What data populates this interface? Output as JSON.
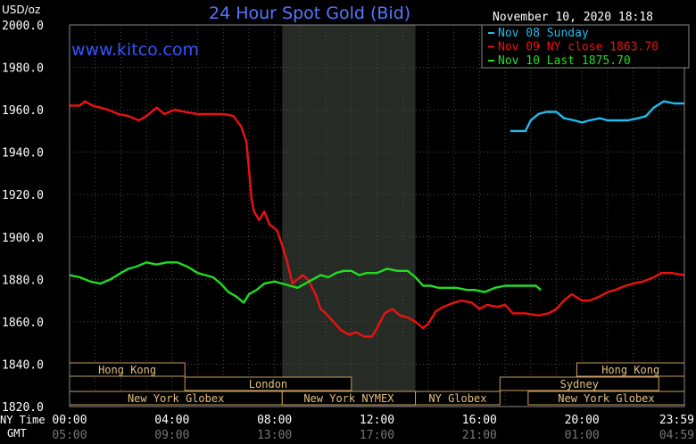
{
  "chart_data": {
    "type": "line",
    "title": "24 Hour Spot Gold (Bid)",
    "unit_label": "USD/oz",
    "watermark": "www.kitco.com",
    "timestamp": "November 10, 2020 18:18",
    "ylim": [
      1820,
      2000
    ],
    "y_ticks": [
      "2000.0",
      "1980.0",
      "1960.0",
      "1940.0",
      "1920.0",
      "1900.0",
      "1880.0",
      "1860.0",
      "1840.0",
      "1820.0"
    ],
    "xlim": [
      0,
      24
    ],
    "ny_time_label": "NY Time",
    "gmt_label": "GMT",
    "x_ticks_ny": [
      "00:00",
      "04:00",
      "08:00",
      "12:00",
      "16:00",
      "20:00",
      "23:59"
    ],
    "x_ticks_gmt": [
      "05:00",
      "09:00",
      "13:00",
      "17:00",
      "21:00",
      "01:00",
      "04:59"
    ],
    "grid": true,
    "legend_position": "top-right",
    "shaded_region": {
      "from_hour": 8.3,
      "to_hour": 13.5
    },
    "series": [
      {
        "name": "Nov 08 Sunday",
        "color": "#22bbee",
        "points": [
          [
            17.2,
            1950
          ],
          [
            17.8,
            1950
          ],
          [
            18.0,
            1955
          ],
          [
            18.3,
            1958
          ],
          [
            18.6,
            1959
          ],
          [
            19.0,
            1959
          ],
          [
            19.3,
            1956
          ],
          [
            19.7,
            1955
          ],
          [
            20.0,
            1954
          ],
          [
            20.3,
            1955
          ],
          [
            20.7,
            1956
          ],
          [
            21.0,
            1955
          ],
          [
            21.4,
            1955
          ],
          [
            21.8,
            1955
          ],
          [
            22.2,
            1956
          ],
          [
            22.5,
            1957
          ],
          [
            22.8,
            1961
          ],
          [
            23.2,
            1964
          ],
          [
            23.6,
            1963
          ],
          [
            23.99,
            1963
          ]
        ]
      },
      {
        "name": "Nov 09 NY close 1863.70",
        "color": "#ee1111",
        "points": [
          [
            0,
            1962
          ],
          [
            0.4,
            1962
          ],
          [
            0.6,
            1964
          ],
          [
            0.9,
            1962
          ],
          [
            1.2,
            1961
          ],
          [
            1.5,
            1960
          ],
          [
            1.9,
            1958
          ],
          [
            2.3,
            1957
          ],
          [
            2.7,
            1955
          ],
          [
            3.0,
            1957
          ],
          [
            3.4,
            1961
          ],
          [
            3.7,
            1958
          ],
          [
            4.1,
            1960
          ],
          [
            4.5,
            1959
          ],
          [
            5.0,
            1958
          ],
          [
            5.5,
            1958
          ],
          [
            6.0,
            1958
          ],
          [
            6.4,
            1957
          ],
          [
            6.7,
            1952
          ],
          [
            6.9,
            1945
          ],
          [
            7.0,
            1932
          ],
          [
            7.1,
            1918
          ],
          [
            7.2,
            1912
          ],
          [
            7.4,
            1908
          ],
          [
            7.6,
            1912
          ],
          [
            7.8,
            1906
          ],
          [
            8.1,
            1903
          ],
          [
            8.3,
            1896
          ],
          [
            8.5,
            1888
          ],
          [
            8.7,
            1878
          ],
          [
            8.9,
            1880
          ],
          [
            9.1,
            1882
          ],
          [
            9.3,
            1880
          ],
          [
            9.6,
            1873
          ],
          [
            9.8,
            1866
          ],
          [
            10.0,
            1864
          ],
          [
            10.3,
            1860
          ],
          [
            10.6,
            1856
          ],
          [
            10.9,
            1854
          ],
          [
            11.2,
            1855
          ],
          [
            11.5,
            1853
          ],
          [
            11.8,
            1853
          ],
          [
            12.0,
            1857
          ],
          [
            12.3,
            1864
          ],
          [
            12.6,
            1866
          ],
          [
            12.9,
            1863
          ],
          [
            13.2,
            1862
          ],
          [
            13.5,
            1860
          ],
          [
            13.8,
            1857
          ],
          [
            14.0,
            1859
          ],
          [
            14.3,
            1865
          ],
          [
            14.6,
            1867
          ],
          [
            15.0,
            1869
          ],
          [
            15.3,
            1870
          ],
          [
            15.7,
            1869
          ],
          [
            16.0,
            1866
          ],
          [
            16.3,
            1868
          ],
          [
            16.7,
            1867
          ],
          [
            17.0,
            1868
          ],
          [
            17.3,
            1864
          ],
          [
            17.8,
            1864
          ],
          [
            18.3,
            1863
          ],
          [
            18.7,
            1864
          ],
          [
            19.0,
            1866
          ],
          [
            19.3,
            1870
          ],
          [
            19.6,
            1873
          ],
          [
            20.0,
            1870
          ],
          [
            20.3,
            1870
          ],
          [
            20.7,
            1872
          ],
          [
            21.0,
            1874
          ],
          [
            21.3,
            1875
          ],
          [
            21.7,
            1877
          ],
          [
            22.0,
            1878
          ],
          [
            22.4,
            1879
          ],
          [
            22.8,
            1881
          ],
          [
            23.1,
            1883
          ],
          [
            23.5,
            1883
          ],
          [
            23.99,
            1882
          ]
        ]
      },
      {
        "name": "Nov 10 Last 1875.70",
        "color": "#22dd22",
        "points": [
          [
            0,
            1882
          ],
          [
            0.4,
            1881
          ],
          [
            0.8,
            1879
          ],
          [
            1.2,
            1878
          ],
          [
            1.6,
            1880
          ],
          [
            2.0,
            1883
          ],
          [
            2.3,
            1885
          ],
          [
            2.6,
            1886
          ],
          [
            3.0,
            1888
          ],
          [
            3.4,
            1887
          ],
          [
            3.8,
            1888
          ],
          [
            4.2,
            1888
          ],
          [
            4.6,
            1886
          ],
          [
            5.0,
            1883
          ],
          [
            5.3,
            1882
          ],
          [
            5.6,
            1881
          ],
          [
            5.9,
            1878
          ],
          [
            6.2,
            1874
          ],
          [
            6.5,
            1872
          ],
          [
            6.8,
            1869
          ],
          [
            7.0,
            1873
          ],
          [
            7.3,
            1875
          ],
          [
            7.6,
            1878
          ],
          [
            8.0,
            1879
          ],
          [
            8.3,
            1878
          ],
          [
            8.6,
            1877
          ],
          [
            8.9,
            1876
          ],
          [
            9.2,
            1878
          ],
          [
            9.5,
            1880
          ],
          [
            9.8,
            1882
          ],
          [
            10.1,
            1881
          ],
          [
            10.4,
            1883
          ],
          [
            10.7,
            1884
          ],
          [
            11.0,
            1884
          ],
          [
            11.3,
            1882
          ],
          [
            11.6,
            1883
          ],
          [
            12.0,
            1883
          ],
          [
            12.4,
            1885
          ],
          [
            12.8,
            1884
          ],
          [
            13.2,
            1884
          ],
          [
            13.5,
            1881
          ],
          [
            13.8,
            1877
          ],
          [
            14.1,
            1877
          ],
          [
            14.4,
            1876
          ],
          [
            14.8,
            1876
          ],
          [
            15.1,
            1876
          ],
          [
            15.5,
            1875
          ],
          [
            15.8,
            1875
          ],
          [
            16.2,
            1874
          ],
          [
            16.6,
            1876
          ],
          [
            17.0,
            1877
          ],
          [
            17.5,
            1877
          ],
          [
            17.9,
            1877
          ],
          [
            18.2,
            1877
          ],
          [
            18.4,
            1875
          ]
        ]
      }
    ],
    "market_sessions": [
      {
        "name": "Hong Kong",
        "row": 0,
        "spans": [
          [
            0,
            4.5
          ],
          [
            19.8,
            24.0
          ]
        ]
      },
      {
        "name": "London",
        "row": 1,
        "spans": [
          [
            4.5,
            11.0
          ]
        ]
      },
      {
        "name": "Sydney",
        "row": 1,
        "spans": [
          [
            16.8,
            23.0
          ]
        ]
      },
      {
        "name": "New York Globex",
        "row": 2,
        "spans": [
          [
            0,
            8.3
          ],
          [
            17.9,
            24.0
          ]
        ]
      },
      {
        "name": "New York NYMEX",
        "row": 2,
        "spans": [
          [
            8.3,
            13.5
          ]
        ]
      },
      {
        "name": "NY Globex",
        "row": 2,
        "spans": [
          [
            13.5,
            16.8
          ]
        ]
      }
    ]
  }
}
